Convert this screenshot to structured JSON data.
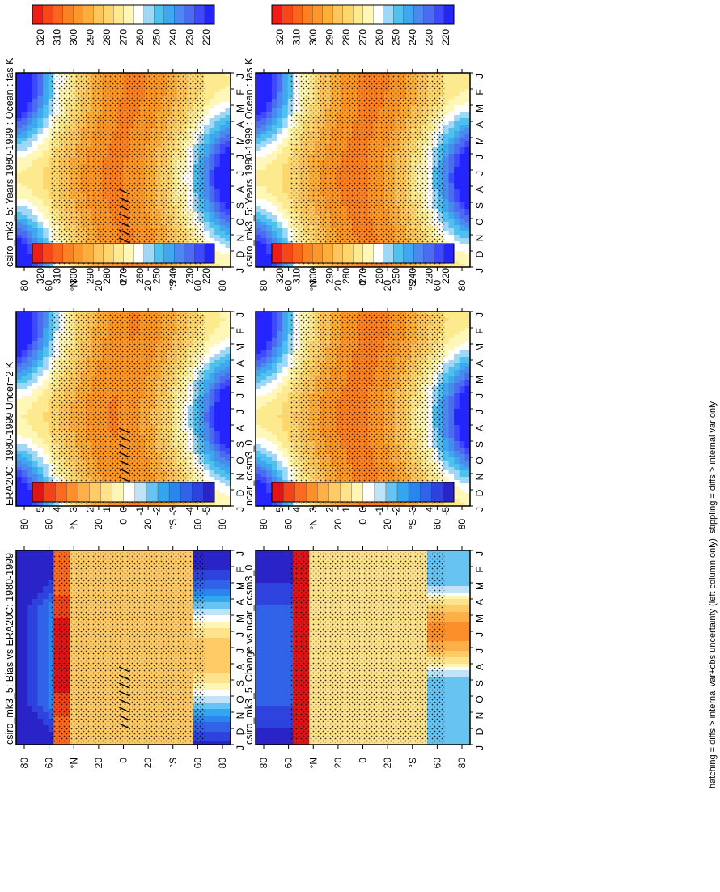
{
  "figure": {
    "footnote": "hatching = diffs > internal var+obs uncertainty (left column only); stippling = diffs > internal var only"
  },
  "palettes": {
    "abs": [
      "#2424ff",
      "#3c49ff",
      "#4b6cf0",
      "#4a89ed",
      "#3fa6f0",
      "#4ec1ee",
      "#9fd8f6",
      "#ffffff",
      "#fff7b8",
      "#fde98e",
      "#fed66e",
      "#fdc55b",
      "#fdad3a",
      "#fd9727",
      "#fb8123",
      "#fa651d",
      "#f7471a",
      "#ee1d16"
    ],
    "diff": [
      "#2a24c8",
      "#2e42de",
      "#3163e8",
      "#2a86ec",
      "#34a6f0",
      "#66c3f2",
      "#bfe3f8",
      "#ffffff",
      "#fff5b5",
      "#fee38c",
      "#fecb67",
      "#fdb047",
      "#fc8f2a",
      "#fb6a1f",
      "#f44219",
      "#e01414"
    ]
  },
  "chart_data": [
    {
      "type": "heatmap",
      "title": "csiro_mk3_5: Years 1980-1999 : Ocean : tas K",
      "x_ticks": [
        "J",
        "F",
        "M",
        "A",
        "M",
        "J",
        "J",
        "A",
        "S",
        "O",
        "N",
        "D",
        "J"
      ],
      "y_ticks": [
        "80",
        "60",
        "°N",
        "20",
        "0",
        "20",
        "°S",
        "60",
        "80"
      ],
      "ylim": [
        -90,
        90
      ],
      "colorbar": {
        "labels": [
          "320",
          "310",
          "300",
          "290",
          "280",
          "270",
          "260",
          "250",
          "240",
          "230",
          "220"
        ],
        "range": [
          215,
          325
        ]
      },
      "field": "abs",
      "offset": 0,
      "hatch": true
    },
    {
      "type": "heatmap",
      "title": "csiro_mk3_5: Years 1980-1999 : Ocean : tas K",
      "x_ticks": [
        "J",
        "F",
        "M",
        "A",
        "M",
        "J",
        "J",
        "A",
        "S",
        "O",
        "N",
        "D",
        "J"
      ],
      "y_ticks": [
        "80",
        "60",
        "°N",
        "20",
        "0",
        "20",
        "°S",
        "60",
        "80"
      ],
      "ylim": [
        -90,
        90
      ],
      "colorbar": {
        "labels": [
          "320",
          "310",
          "300",
          "290",
          "280",
          "270",
          "260",
          "250",
          "240",
          "230",
          "220"
        ],
        "range": [
          215,
          325
        ]
      },
      "field": "abs",
      "offset": 0.5,
      "hatch": false
    },
    {
      "type": "heatmap",
      "title": "ERA20C: 1980-1999 Uncer=2 K",
      "x_ticks": [
        "J",
        "F",
        "M",
        "A",
        "M",
        "J",
        "J",
        "A",
        "S",
        "O",
        "N",
        "D",
        "J"
      ],
      "y_ticks": [
        "80",
        "60",
        "°N",
        "20",
        "0",
        "20",
        "°S",
        "60",
        "80"
      ],
      "ylim": [
        -90,
        90
      ],
      "colorbar": {
        "labels": [
          "320",
          "310",
          "300",
          "290",
          "280",
          "270",
          "260",
          "250",
          "240",
          "230",
          "220"
        ],
        "range": [
          215,
          325
        ]
      },
      "field": "abs",
      "offset": -1,
      "hatch": true
    },
    {
      "type": "heatmap",
      "title": "ncar_ccsm3_0",
      "x_ticks": [
        "J",
        "F",
        "M",
        "A",
        "M",
        "J",
        "J",
        "A",
        "S",
        "O",
        "N",
        "D",
        "J"
      ],
      "y_ticks": [
        "80",
        "60",
        "°N",
        "20",
        "0",
        "20",
        "°S",
        "60",
        "80"
      ],
      "ylim": [
        -90,
        90
      ],
      "colorbar": {
        "labels": [
          "320",
          "310",
          "300",
          "290",
          "280",
          "270",
          "260",
          "250",
          "240",
          "230",
          "220"
        ],
        "range": [
          215,
          325
        ]
      },
      "field": "abs",
      "offset": 0.8,
      "hatch": false
    },
    {
      "type": "heatmap",
      "title": "csiro_mk3_5: Bias vs ERA20C: 1980-1999",
      "x_ticks": [
        "J",
        "F",
        "M",
        "A",
        "M",
        "J",
        "J",
        "A",
        "S",
        "O",
        "N",
        "D",
        "J"
      ],
      "y_ticks": [
        "80",
        "60",
        "°N",
        "20",
        "0",
        "20",
        "°S",
        "60",
        "80"
      ],
      "ylim": [
        -90,
        90
      ],
      "colorbar": {
        "labels": [
          "5",
          "4",
          "3",
          "2",
          "1",
          "0",
          "-1",
          "-2",
          "-3",
          "-4",
          "-5"
        ],
        "range": [
          -5.5,
          5.5
        ]
      },
      "field": "bias",
      "offset": 0,
      "hatch": true
    },
    {
      "type": "heatmap",
      "title": "csiro_mk3_5: Change vs ncar_ccsm3_0",
      "x_ticks": [
        "J",
        "F",
        "M",
        "A",
        "M",
        "J",
        "J",
        "A",
        "S",
        "O",
        "N",
        "D",
        "J"
      ],
      "y_ticks": [
        "80",
        "60",
        "°N",
        "20",
        "0",
        "20",
        "°S",
        "60",
        "80"
      ],
      "ylim": [
        -90,
        90
      ],
      "colorbar": {
        "labels": [
          "5",
          "4",
          "3",
          "2",
          "1",
          "0",
          "-1",
          "-2",
          "-3",
          "-4",
          "-5"
        ],
        "range": [
          -5.5,
          5.5
        ]
      },
      "field": "change",
      "offset": 0,
      "hatch": false
    }
  ]
}
